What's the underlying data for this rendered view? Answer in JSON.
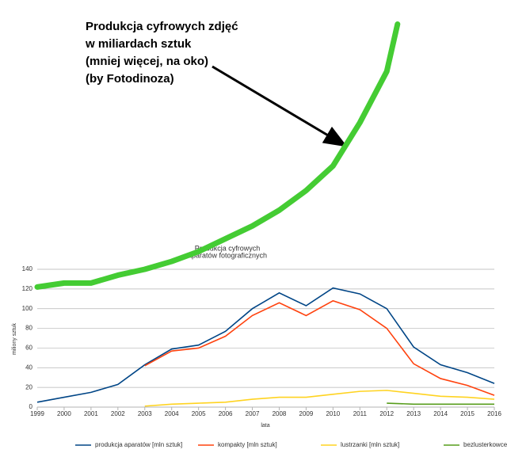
{
  "chart_data": {
    "type": "line",
    "title": [
      "Produkcja cyfrowych",
      "aparatów fotograficznych"
    ],
    "y_label": "miliony sztuk",
    "x_label": "lata",
    "categories": [
      "1999",
      "2000",
      "2001",
      "2002",
      "2003",
      "2004",
      "2005",
      "2006",
      "2007",
      "2008",
      "2009",
      "2010",
      "2011",
      "2012",
      "2013",
      "2014",
      "2015",
      "2016"
    ],
    "ylim": [
      0,
      140
    ],
    "yticks": [
      0,
      20,
      40,
      60,
      80,
      100,
      120,
      140
    ],
    "grid": true,
    "legend": "bottom",
    "series": [
      {
        "name": "produkcja aparatów [mln sztuk]",
        "color": "#004586",
        "values": [
          5,
          10,
          15,
          23,
          43,
          59,
          63,
          77,
          100,
          116,
          103,
          121,
          115,
          100,
          61,
          43,
          35,
          24
        ]
      },
      {
        "name": "kompakty [mln sztuk]",
        "color": "#ff420e",
        "values": [
          null,
          null,
          null,
          null,
          42,
          57,
          60,
          72,
          93,
          106,
          93,
          108,
          99,
          80,
          44,
          29,
          22,
          12
        ]
      },
      {
        "name": "lustrzanki [mln sztuk]",
        "color": "#ffd320",
        "values": [
          null,
          null,
          null,
          null,
          1,
          3,
          4,
          5,
          8,
          10,
          10,
          13,
          16,
          17,
          14,
          11,
          10,
          8
        ]
      },
      {
        "name": "bezlusterkowce [mln sztuk]",
        "color": "#579d1c",
        "values": [
          null,
          null,
          null,
          null,
          null,
          null,
          null,
          null,
          null,
          null,
          null,
          null,
          null,
          4,
          3,
          3,
          3,
          3
        ]
      }
    ],
    "annotation": {
      "text": [
        "Produkcja cyfrowych zdjęć",
        "w miliardach sztuk",
        "(mniej więcej, na oko)",
        "(by Fotodinoza)"
      ],
      "curve": {
        "color": "#44cc33",
        "x": [
          1999,
          2000,
          2001,
          2002,
          2003,
          2004,
          2005,
          2006,
          2007,
          2008,
          2009,
          2010,
          2011,
          2012,
          2012.4
        ],
        "values": [
          122,
          126,
          126,
          134,
          140,
          148,
          158,
          171,
          184,
          200,
          220,
          245,
          289,
          341,
          389
        ]
      }
    }
  }
}
